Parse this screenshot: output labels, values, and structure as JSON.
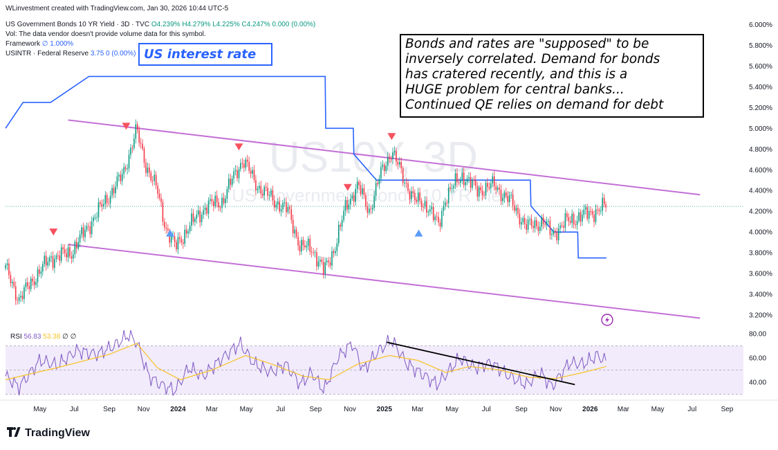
{
  "header": {
    "attribution": "WLinvestment created with TradingView.com, Jan 30, 2026 10:44 UTC-5",
    "symbol": "US Government Bonds 10 YR Yield · 3D · TVC",
    "ohlc": "O4.239% H4.279% L4.225% C4.247% 0.000 (0.00%)",
    "vol": "Vol: The data vendor doesn't provide volume data for this symbol.",
    "framework_label": "Framework",
    "framework_value": "∅ 1.000%",
    "usintr_label": "USINTR · Federal Reserve",
    "usintr_value": "3.75  0 (0.00%)"
  },
  "annotations": {
    "rate_label": "US interest rate",
    "note_lines": [
      "Bonds and rates are \"supposed\" to be",
      "inversely correlated. Demand for bonds",
      "has cratered recently, and this is a",
      "HUGE problem for central banks...",
      "Continued QE relies on demand for debt"
    ],
    "watermark_symbol": "US10Y, 3D",
    "watermark_name": "US Government Bonds 10 YR Yield"
  },
  "rsi_header": {
    "label": "RSI",
    "value1": "56.83",
    "value2": "53.38",
    "extra": "∅ ∅"
  },
  "brand": "TradingView",
  "colors": {
    "up": "#089981",
    "down": "#f23645",
    "rate": "#2962ff",
    "channel": "#c36fd6",
    "rsi": "#7e57c2",
    "rsi_ma": "#f7c325"
  },
  "icons": {
    "lightning": "lightning-icon"
  },
  "chart_data": [
    {
      "type": "candlestick",
      "ylim": [
        3.1,
        6.05
      ],
      "y_ticks": [
        "6.000%",
        "5.800%",
        "5.600%",
        "5.400%",
        "5.200%",
        "5.000%",
        "4.800%",
        "4.600%",
        "4.400%",
        "4.200%",
        "4.000%",
        "3.800%",
        "3.600%",
        "3.400%",
        "3.200%"
      ],
      "x_ticks": [
        "May",
        "Jul",
        "Sep",
        "Nov",
        "2024",
        "Mar",
        "May",
        "Jul",
        "Sep",
        "Nov",
        "2025",
        "Mar",
        "May",
        "Jul",
        "Sep",
        "Nov",
        "2026",
        "Mar",
        "May",
        "Jul",
        "Sep"
      ],
      "x_start": "2023-03-01",
      "x_end": "2026-09-30",
      "last_price": 4.247,
      "yield_path": [
        [
          "2023-03-01",
          3.65
        ],
        [
          "2023-03-25",
          3.35
        ],
        [
          "2023-04-20",
          3.55
        ],
        [
          "2023-05-20",
          3.75
        ],
        [
          "2023-06-25",
          3.8
        ],
        [
          "2023-07-25",
          4.05
        ],
        [
          "2023-08-25",
          4.3
        ],
        [
          "2023-09-25",
          4.55
        ],
        [
          "2023-10-19",
          4.98
        ],
        [
          "2023-11-05",
          4.65
        ],
        [
          "2023-11-25",
          4.4
        ],
        [
          "2023-12-10",
          4.05
        ],
        [
          "2023-12-27",
          3.85
        ],
        [
          "2024-01-20",
          4.05
        ],
        [
          "2024-02-20",
          4.25
        ],
        [
          "2024-03-20",
          4.3
        ],
        [
          "2024-04-10",
          4.55
        ],
        [
          "2024-04-25",
          4.7
        ],
        [
          "2024-05-20",
          4.45
        ],
        [
          "2024-06-20",
          4.3
        ],
        [
          "2024-07-15",
          4.2
        ],
        [
          "2024-08-05",
          3.85
        ],
        [
          "2024-08-25",
          3.85
        ],
        [
          "2024-09-16",
          3.62
        ],
        [
          "2024-10-05",
          3.85
        ],
        [
          "2024-10-25",
          4.25
        ],
        [
          "2024-11-15",
          4.45
        ],
        [
          "2024-12-05",
          4.2
        ],
        [
          "2024-12-25",
          4.55
        ],
        [
          "2025-01-14",
          4.79
        ],
        [
          "2025-02-05",
          4.5
        ],
        [
          "2025-02-25",
          4.3
        ],
        [
          "2025-03-20",
          4.25
        ],
        [
          "2025-04-07",
          4.05
        ],
        [
          "2025-04-20",
          4.35
        ],
        [
          "2025-05-20",
          4.55
        ],
        [
          "2025-06-15",
          4.4
        ],
        [
          "2025-07-15",
          4.45
        ],
        [
          "2025-08-15",
          4.28
        ],
        [
          "2025-09-10",
          4.05
        ],
        [
          "2025-10-10",
          4.1
        ],
        [
          "2025-10-25",
          3.98
        ],
        [
          "2025-11-20",
          4.1
        ],
        [
          "2025-12-15",
          4.15
        ],
        [
          "2026-01-10",
          4.2
        ],
        [
          "2026-01-30",
          4.25
        ]
      ],
      "rate_line": [
        [
          "2023-03-01",
          5.0
        ],
        [
          "2023-04-01",
          5.25
        ],
        [
          "2023-05-20",
          5.25
        ],
        [
          "2023-07-27",
          5.5
        ],
        [
          "2024-09-18",
          5.5
        ],
        [
          "2024-09-19",
          5.0
        ],
        [
          "2024-11-07",
          5.0
        ],
        [
          "2024-11-08",
          4.75
        ],
        [
          "2024-12-18",
          4.5
        ],
        [
          "2025-09-17",
          4.5
        ],
        [
          "2025-09-18",
          4.25
        ],
        [
          "2025-10-29",
          4.0
        ],
        [
          "2025-12-10",
          4.0
        ],
        [
          "2025-12-11",
          3.75
        ],
        [
          "2026-01-30",
          3.75
        ]
      ],
      "channel_upper": [
        [
          "2023-06-20",
          5.08
        ],
        [
          "2026-07-15",
          4.36
        ]
      ],
      "channel_lower": [
        [
          "2023-06-20",
          3.88
        ],
        [
          "2026-07-15",
          3.17
        ]
      ],
      "markers_down": [
        [
          "2023-05-25",
          4.0
        ],
        [
          "2023-10-01",
          5.02
        ],
        [
          "2024-04-18",
          4.82
        ],
        [
          "2024-10-28",
          4.43
        ],
        [
          "2025-01-14",
          4.92
        ]
      ],
      "markers_up": [
        [
          "2023-12-18",
          3.99
        ],
        [
          "2025-03-03",
          3.99
        ]
      ]
    },
    {
      "type": "line",
      "title": "RSI",
      "ylim": [
        28,
        84
      ],
      "y_ticks": [
        "80.00",
        "60.00",
        "40.00"
      ],
      "band": [
        30,
        70
      ],
      "series": [
        {
          "name": "RSI",
          "values": [
            [
              "2023-03-01",
              45
            ],
            [
              "2023-03-25",
              36
            ],
            [
              "2023-05-01",
              58
            ],
            [
              "2023-06-01",
              54
            ],
            [
              "2023-07-05",
              66
            ],
            [
              "2023-08-10",
              63
            ],
            [
              "2023-09-10",
              70
            ],
            [
              "2023-10-05",
              79
            ],
            [
              "2023-10-20",
              73
            ],
            [
              "2023-11-10",
              45
            ],
            [
              "2023-12-01",
              38
            ],
            [
              "2023-12-27",
              33
            ],
            [
              "2024-01-20",
              52
            ],
            [
              "2024-02-15",
              45
            ],
            [
              "2024-03-15",
              58
            ],
            [
              "2024-04-20",
              72
            ],
            [
              "2024-05-15",
              55
            ],
            [
              "2024-06-15",
              48
            ],
            [
              "2024-07-10",
              55
            ],
            [
              "2024-08-05",
              38
            ],
            [
              "2024-08-25",
              48
            ],
            [
              "2024-09-16",
              33
            ],
            [
              "2024-10-10",
              60
            ],
            [
              "2024-11-05",
              72
            ],
            [
              "2024-11-25",
              50
            ],
            [
              "2024-12-20",
              65
            ],
            [
              "2025-01-14",
              75
            ],
            [
              "2025-02-10",
              55
            ],
            [
              "2025-03-05",
              48
            ],
            [
              "2025-04-05",
              38
            ],
            [
              "2025-05-15",
              60
            ],
            [
              "2025-06-10",
              52
            ],
            [
              "2025-07-10",
              56
            ],
            [
              "2025-08-10",
              45
            ],
            [
              "2025-09-10",
              38
            ],
            [
              "2025-10-05",
              48
            ],
            [
              "2025-10-25",
              36
            ],
            [
              "2025-11-25",
              56
            ],
            [
              "2025-12-20",
              55
            ],
            [
              "2026-01-14",
              62
            ],
            [
              "2026-01-30",
              57
            ]
          ]
        },
        {
          "name": "RSI MA",
          "values": [
            [
              "2023-03-01",
              42
            ],
            [
              "2023-06-01",
              52
            ],
            [
              "2023-09-01",
              63
            ],
            [
              "2023-10-20",
              72
            ],
            [
              "2023-11-25",
              52
            ],
            [
              "2024-01-05",
              42
            ],
            [
              "2024-03-01",
              50
            ],
            [
              "2024-04-30",
              62
            ],
            [
              "2024-06-15",
              55
            ],
            [
              "2024-08-10",
              45
            ],
            [
              "2024-09-25",
              42
            ],
            [
              "2024-11-15",
              55
            ],
            [
              "2025-01-10",
              62
            ],
            [
              "2025-03-01",
              58
            ],
            [
              "2025-04-20",
              48
            ],
            [
              "2025-06-01",
              53
            ],
            [
              "2025-07-25",
              50
            ],
            [
              "2025-09-15",
              44
            ],
            [
              "2025-11-01",
              43
            ],
            [
              "2025-12-20",
              48
            ],
            [
              "2026-01-30",
              53
            ]
          ]
        }
      ],
      "trendline": [
        [
          "2025-01-05",
          73
        ],
        [
          "2025-12-05",
          38
        ]
      ]
    }
  ]
}
